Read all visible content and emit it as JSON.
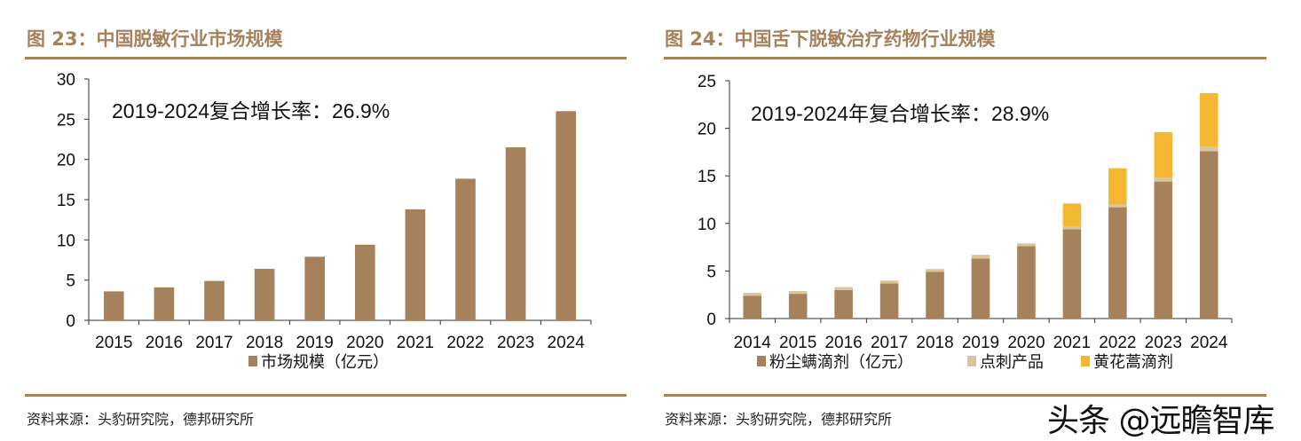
{
  "chart_data": [
    {
      "type": "bar",
      "title": "图 23：中国脱敏行业市场规模",
      "annotation": "2019-2024复合增长率：26.9%",
      "categories": [
        "2015",
        "2016",
        "2017",
        "2018",
        "2019",
        "2020",
        "2021",
        "2022",
        "2023",
        "2024"
      ],
      "series": [
        {
          "name": "市场规模（亿元）",
          "values": [
            3.6,
            4.1,
            4.9,
            6.4,
            7.9,
            9.4,
            13.8,
            17.6,
            21.5,
            26.0
          ],
          "color": "#a6825c"
        }
      ],
      "ylim": [
        0,
        30
      ],
      "yticks": [
        0,
        5,
        10,
        15,
        20,
        25,
        30
      ],
      "grid": false,
      "legend": "bottom",
      "source": "资料来源：头豹研究院，德邦研究所"
    },
    {
      "type": "stacked-bar",
      "title": "图 24：中国舌下脱敏治疗药物行业规模",
      "annotation": "2019-2024年复合增长率：28.9%",
      "categories": [
        "2014",
        "2015",
        "2016",
        "2017",
        "2018",
        "2019",
        "2020",
        "2021",
        "2022",
        "2023",
        "2024"
      ],
      "series": [
        {
          "name": "粉尘螨滴剂（亿元）",
          "values": [
            2.4,
            2.6,
            3.0,
            3.7,
            4.9,
            6.3,
            7.6,
            9.4,
            11.7,
            14.4,
            17.6
          ],
          "color": "#a6825c"
        },
        {
          "name": "点刺产品",
          "values": [
            0.3,
            0.3,
            0.3,
            0.3,
            0.3,
            0.4,
            0.3,
            0.3,
            0.3,
            0.4,
            0.5
          ],
          "color": "#d9c49e"
        },
        {
          "name": "黄花蒿滴剂",
          "values": [
            0,
            0,
            0,
            0,
            0,
            0,
            0,
            2.4,
            3.8,
            4.8,
            5.6
          ],
          "color": "#f4b731"
        }
      ],
      "ylim": [
        0,
        25
      ],
      "yticks": [
        0,
        5,
        10,
        15,
        20,
        25
      ],
      "grid": false,
      "legend": "bottom",
      "source": "资料来源：头豹研究院，德邦研究所"
    }
  ],
  "watermark": "头条 @远瞻智库"
}
